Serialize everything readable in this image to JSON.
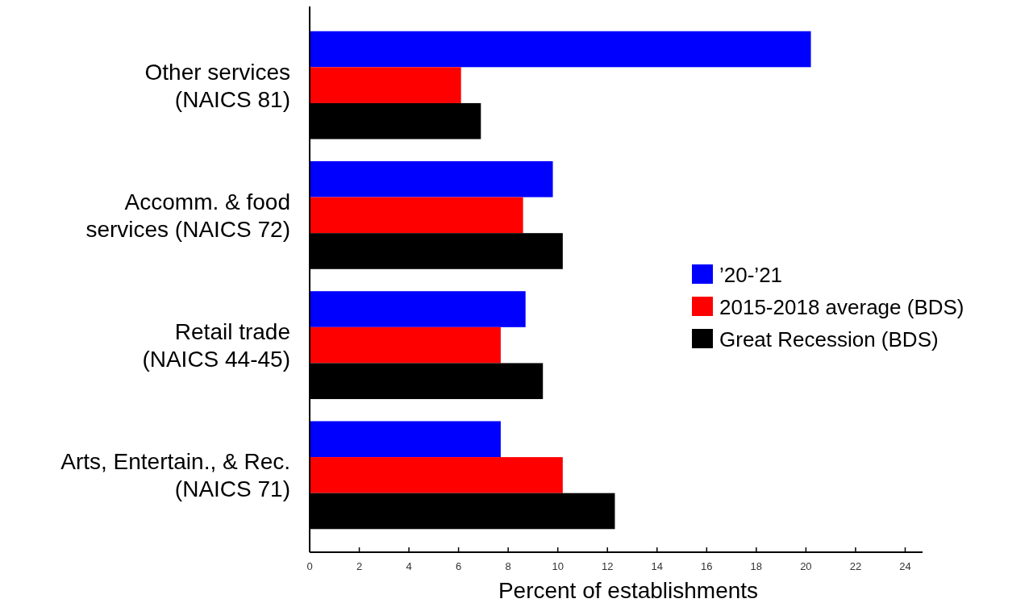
{
  "chart_data": {
    "type": "bar",
    "orientation": "horizontal",
    "xlabel": "Percent of establishments",
    "categories": [
      "Other services\n(NAICS 81)",
      "Accomm. & food\nservices (NAICS 72)",
      "Retail trade\n(NAICS 44-45)",
      "Arts, Entertain., & Rec.\n(NAICS 71)"
    ],
    "series": [
      {
        "name": "’20-’21",
        "color": "#0000ff",
        "values": [
          20.2,
          9.8,
          8.7,
          7.7
        ]
      },
      {
        "name": "2015-2018 average (BDS)",
        "color": "#ff0000",
        "values": [
          6.1,
          8.6,
          7.7,
          10.2
        ]
      },
      {
        "name": "Great Recession (BDS)",
        "color": "#000000",
        "values": [
          6.9,
          10.2,
          9.4,
          12.3
        ]
      }
    ],
    "xlim": [
      0,
      24.7
    ],
    "xticks": [
      0,
      2,
      4,
      6,
      8,
      10,
      12,
      14,
      16,
      18,
      20,
      22,
      24
    ],
    "legend": "right",
    "grid": false
  }
}
